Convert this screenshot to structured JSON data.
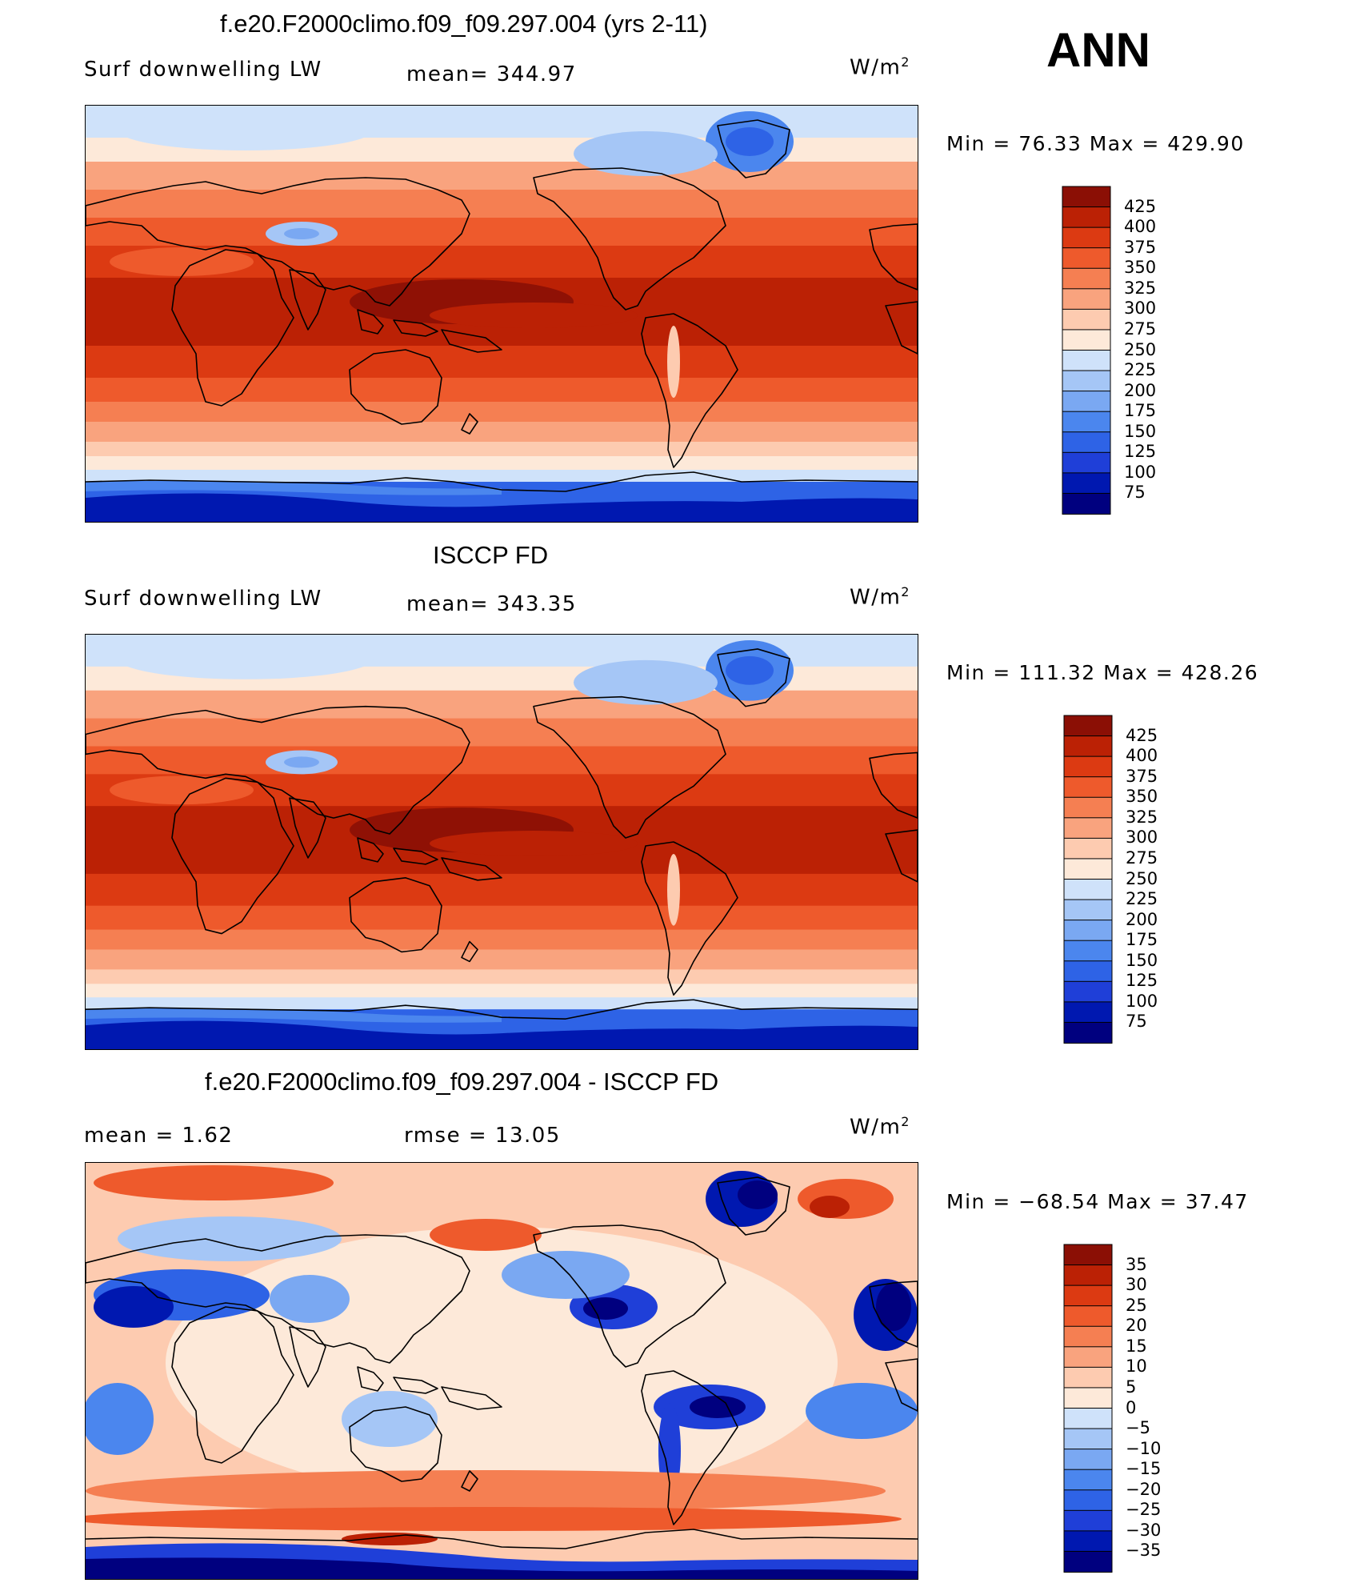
{
  "season": "ANN",
  "colors": {
    "sequential": [
      "#00007f",
      "#0018b0",
      "#1f3fd8",
      "#2e63e6",
      "#4b86ee",
      "#7aa8f2",
      "#a5c6f6",
      "#cfe2fa",
      "#fde9d9",
      "#fdcbb0",
      "#f9a37e",
      "#f57f52",
      "#ee5a2c",
      "#dc3a12",
      "#bb2105",
      "#8b0f05"
    ],
    "diverging": [
      "#00007f",
      "#0018b0",
      "#1f3fd8",
      "#2e63e6",
      "#4b86ee",
      "#7aa8f2",
      "#a5c6f6",
      "#cfe2fa",
      "#fde9d9",
      "#fdcbb0",
      "#f9a37e",
      "#f57f52",
      "#ee5a2c",
      "#dc3a12",
      "#bb2105",
      "#8b0f05"
    ]
  },
  "panels": [
    {
      "title": "f.e20.F2000climo.f09_f09.297.004 (yrs 2-11)",
      "left_label": "Surf downwelling LW",
      "center_label": "mean= 344.97",
      "units": "W/m",
      "units_sup": "2",
      "minmax": "Min =   76.33 Max = 429.90",
      "kind": "abs",
      "colorbar_labels": [
        "425",
        "400",
        "375",
        "350",
        "325",
        "300",
        "275",
        "250",
        "225",
        "200",
        "175",
        "150",
        "125",
        "100",
        "75"
      ]
    },
    {
      "title": "ISCCP FD",
      "left_label": "Surf downwelling LW",
      "center_label": "mean= 343.35",
      "units": "W/m",
      "units_sup": "2",
      "minmax": "Min = 111.32 Max = 428.26",
      "kind": "abs",
      "colorbar_labels": [
        "425",
        "400",
        "375",
        "350",
        "325",
        "300",
        "275",
        "250",
        "225",
        "200",
        "175",
        "150",
        "125",
        "100",
        "75"
      ]
    },
    {
      "title": "f.e20.F2000climo.f09_f09.297.004 - ISCCP FD",
      "left_label": "mean =    1.62",
      "center_label": "rmse =   13.05",
      "units": "W/m",
      "units_sup": "2",
      "minmax": "Min = −68.54 Max =   37.47",
      "kind": "diff",
      "colorbar_labels": [
        "35",
        "30",
        "25",
        "20",
        "15",
        "10",
        "5",
        "0",
        "−5",
        "−10",
        "−15",
        "−20",
        "−25",
        "−30",
        "−35"
      ]
    }
  ]
}
